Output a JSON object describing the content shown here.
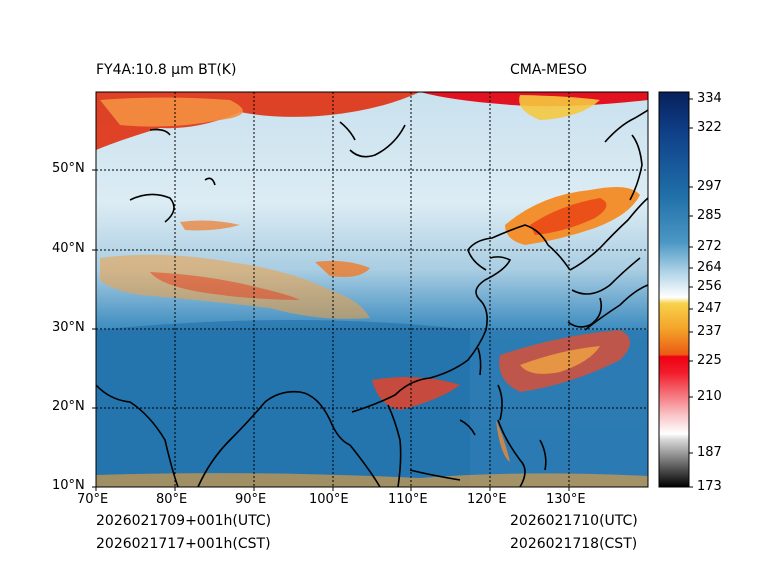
{
  "header": {
    "title_left": "FY4A:10.8 µm BT(K)",
    "title_right": "CMA-MESO"
  },
  "footer": {
    "init_utc": "2026021709+001h(UTC)",
    "init_cst": "2026021717+001h(CST)",
    "valid_utc": "2026021710(UTC)",
    "valid_cst": "2026021718(CST)"
  },
  "map": {
    "lon_range": [
      70,
      140
    ],
    "lat_range": [
      10,
      60
    ],
    "lon_labels": [
      "70°E",
      "80°E",
      "90°E",
      "100°E",
      "110°E",
      "120°E",
      "130°E"
    ],
    "lat_labels": [
      "10°N",
      "20°N",
      "30°N",
      "40°N",
      "50°N"
    ]
  },
  "colorbar": {
    "min": 173,
    "max": 340,
    "ticks": [
      "334",
      "322",
      "297",
      "285",
      "272",
      "264",
      "256",
      "247",
      "237",
      "225",
      "210",
      "187",
      "173"
    ],
    "colors": {
      "hot": "#e8000a",
      "orange": "#f08020",
      "yellow": "#f5c832",
      "white": "#ffffff",
      "lightblue": "#c8e0ee",
      "blue": "#2b7fb8",
      "navy": "#0a2a70"
    }
  }
}
